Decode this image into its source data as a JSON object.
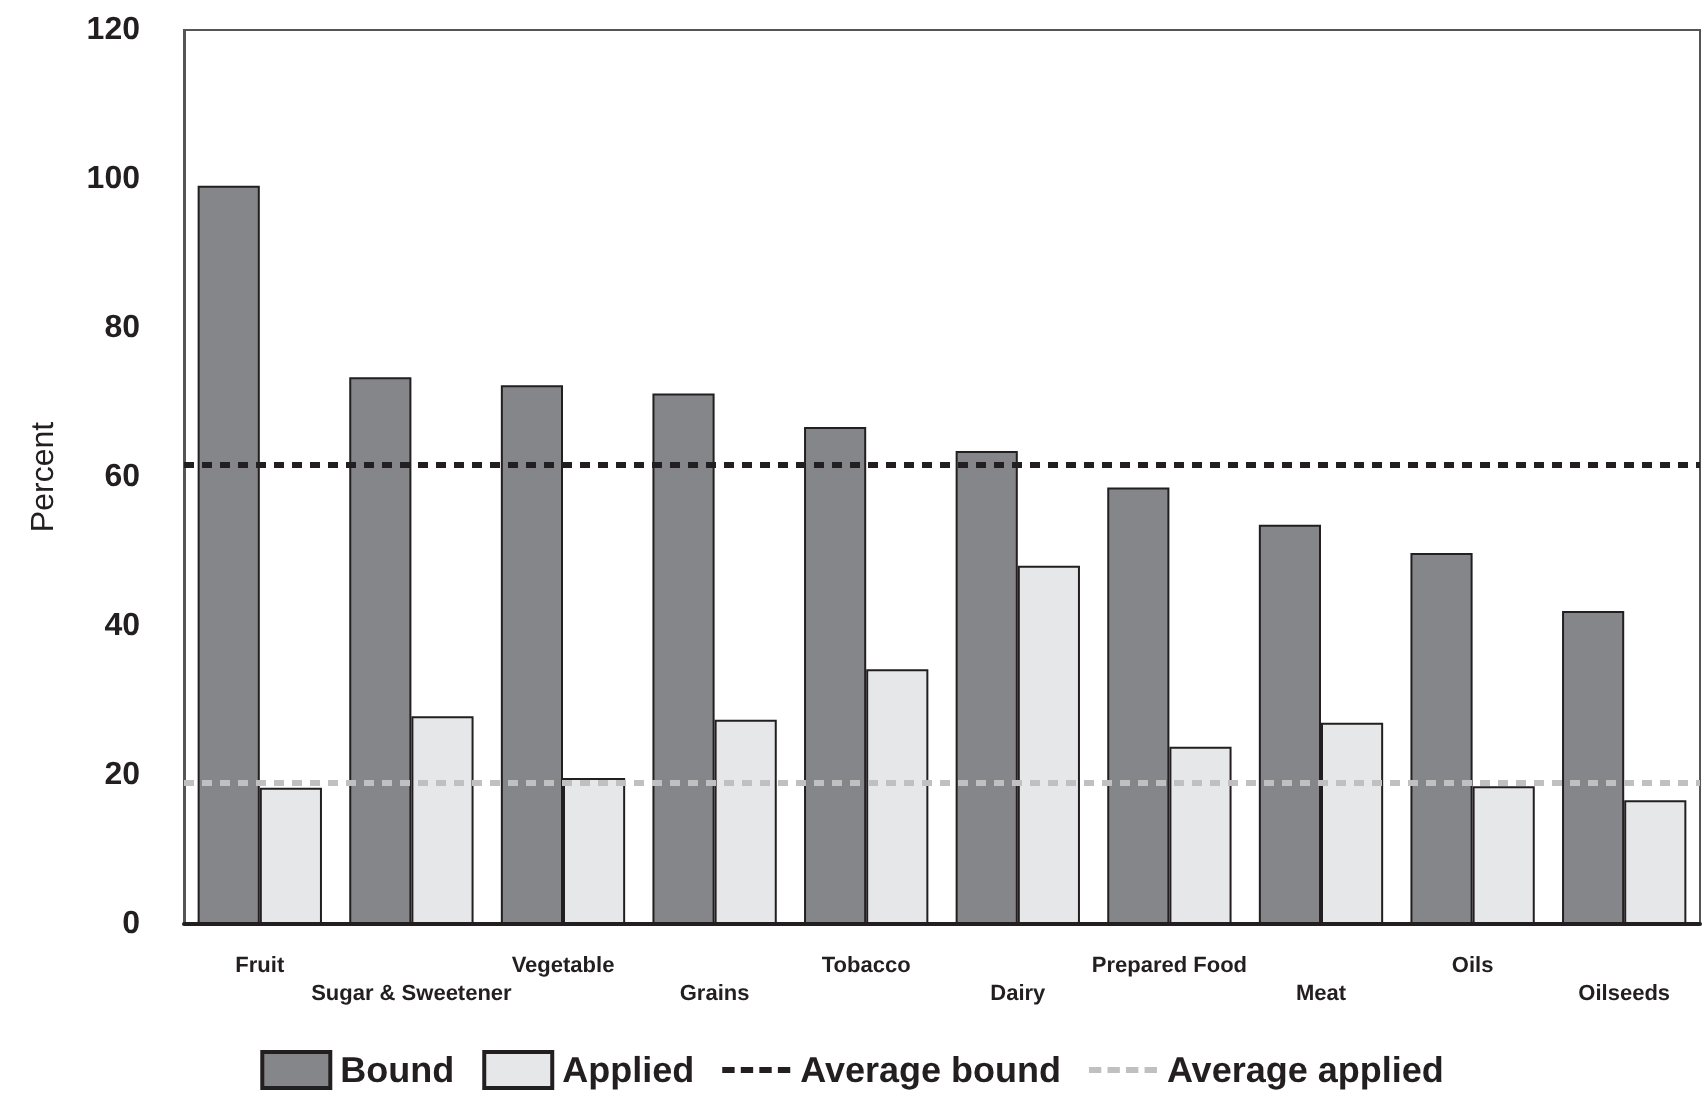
{
  "chart_data": {
    "type": "bar",
    "ylabel": "Percent",
    "categories": [
      "Fruit",
      "Sugar & Sweetener",
      "Vegetable",
      "Grains",
      "Tobacco",
      "Dairy",
      "Prepared Food",
      "Meat",
      "Oils",
      "Oilseeds"
    ],
    "series": [
      {
        "name": "Bound",
        "color": "#858689",
        "values": [
          99.1,
          73.4,
          72.3,
          71.2,
          66.7,
          63.5,
          58.6,
          53.6,
          49.8,
          42.0
        ]
      },
      {
        "name": "Applied",
        "color": "#e6e7e9",
        "values": [
          18.3,
          27.9,
          19.6,
          27.4,
          34.2,
          48.1,
          23.8,
          27.0,
          18.5,
          16.6
        ]
      }
    ],
    "ref_lines": [
      {
        "axis": "y",
        "value": 61.7,
        "label": "Average bound",
        "color": "#231f20",
        "line_style": "dashed"
      },
      {
        "axis": "y",
        "value": 19.0,
        "label": "Average applied",
        "color": "#c0c0c0",
        "line_style": "dashed"
      }
    ],
    "ylim": [
      0,
      120
    ],
    "yticks": [
      0,
      20,
      40,
      60,
      80,
      100,
      120
    ],
    "grid": false,
    "legend": "bottom"
  }
}
